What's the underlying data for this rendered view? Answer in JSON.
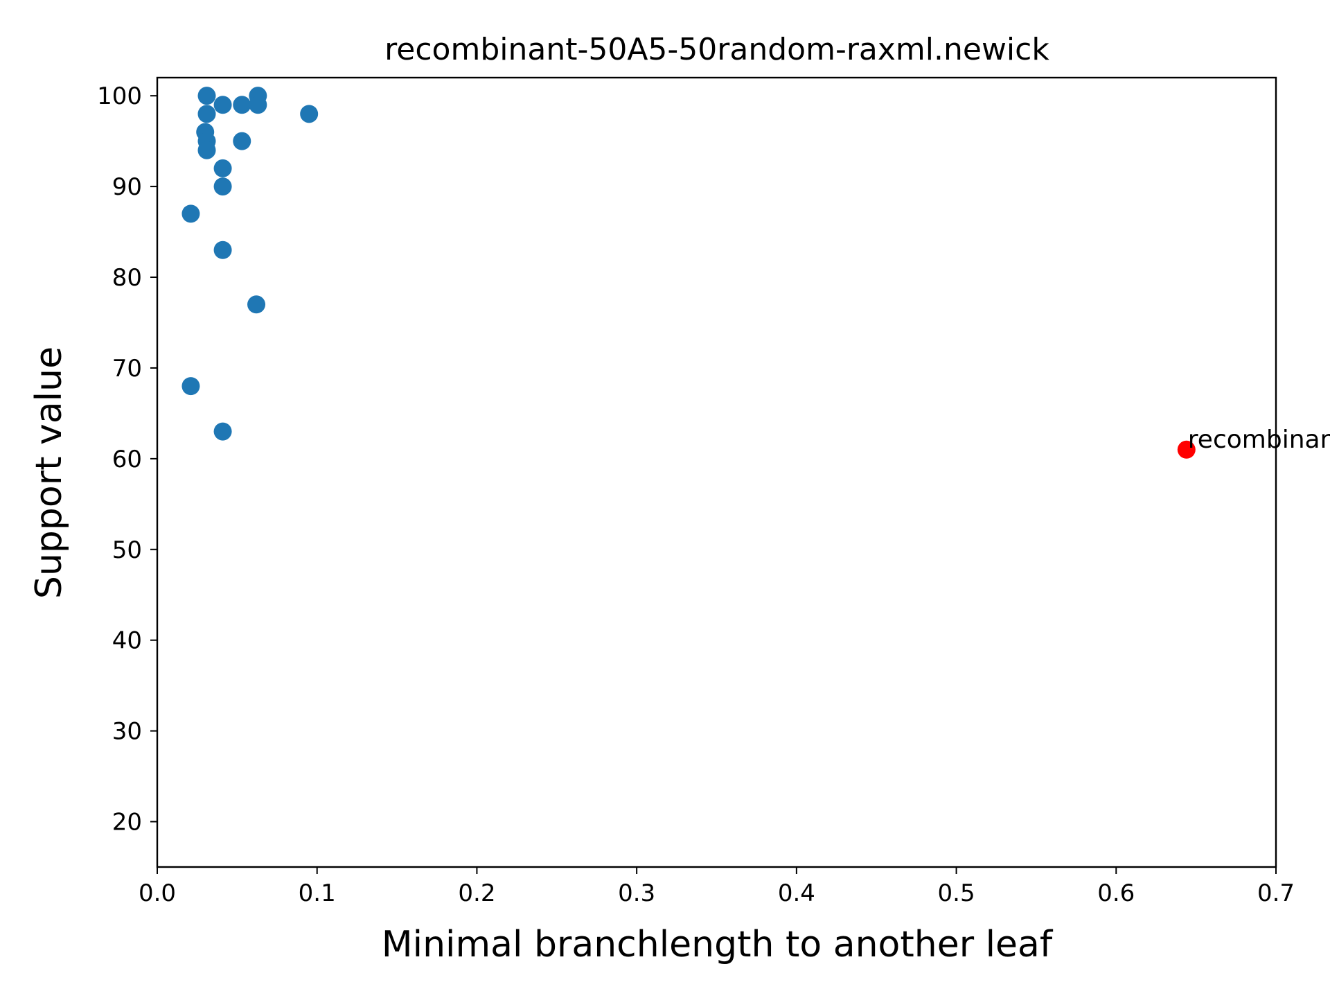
{
  "chart_data": {
    "type": "scatter",
    "title": "recombinant-50A5-50random-raxml.newick",
    "xlabel": "Minimal branchlength to another leaf",
    "ylabel": "Support value",
    "xlim": [
      0.0,
      0.7
    ],
    "ylim": [
      15,
      102
    ],
    "xticks": [
      "0.0",
      "0.1",
      "0.2",
      "0.3",
      "0.4",
      "0.5",
      "0.6",
      "0.7"
    ],
    "yticks": [
      "20",
      "30",
      "40",
      "50",
      "60",
      "70",
      "80",
      "90",
      "100"
    ],
    "grid": false,
    "colors": {
      "points": "#1f77b4",
      "highlight": "#ff0000"
    },
    "series": [
      {
        "points": [
          {
            "x": 0.031,
            "y": 100
          },
          {
            "x": 0.063,
            "y": 100
          },
          {
            "x": 0.041,
            "y": 99
          },
          {
            "x": 0.053,
            "y": 99
          },
          {
            "x": 0.063,
            "y": 99
          },
          {
            "x": 0.031,
            "y": 98
          },
          {
            "x": 0.095,
            "y": 98
          },
          {
            "x": 0.03,
            "y": 96
          },
          {
            "x": 0.031,
            "y": 95
          },
          {
            "x": 0.053,
            "y": 95
          },
          {
            "x": 0.031,
            "y": 94
          },
          {
            "x": 0.041,
            "y": 92
          },
          {
            "x": 0.041,
            "y": 90
          },
          {
            "x": 0.021,
            "y": 87
          },
          {
            "x": 0.041,
            "y": 83
          },
          {
            "x": 0.062,
            "y": 77
          },
          {
            "x": 0.021,
            "y": 68
          },
          {
            "x": 0.041,
            "y": 63
          }
        ]
      },
      {
        "highlight": true,
        "points": [
          {
            "x": 0.644,
            "y": 61,
            "label": "recombinant"
          }
        ]
      }
    ]
  }
}
